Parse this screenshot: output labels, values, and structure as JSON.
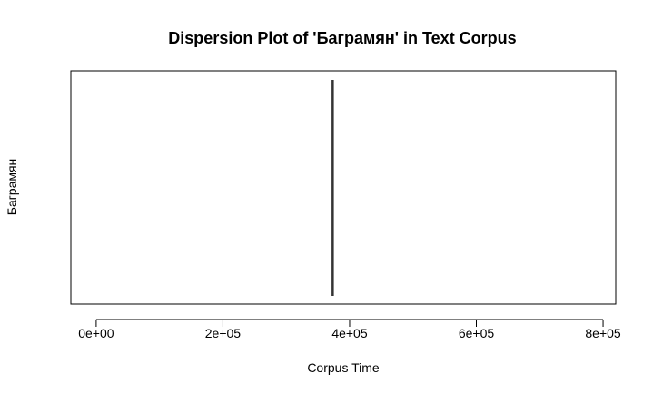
{
  "chart_data": {
    "type": "dispersion",
    "title": "Dispersion Plot of 'Баграмян' in Text Corpus",
    "xlabel": "Corpus Time",
    "ylabel": "Баграмян",
    "xlim": [
      -40000,
      820000
    ],
    "x_ticks": [
      0,
      200000,
      400000,
      600000,
      800000
    ],
    "x_tick_labels": [
      "0e+00",
      "2e+05",
      "4e+05",
      "6e+05",
      "8e+05"
    ],
    "events": [
      372500,
      374200
    ],
    "grid": false,
    "line_color": "#000000"
  }
}
